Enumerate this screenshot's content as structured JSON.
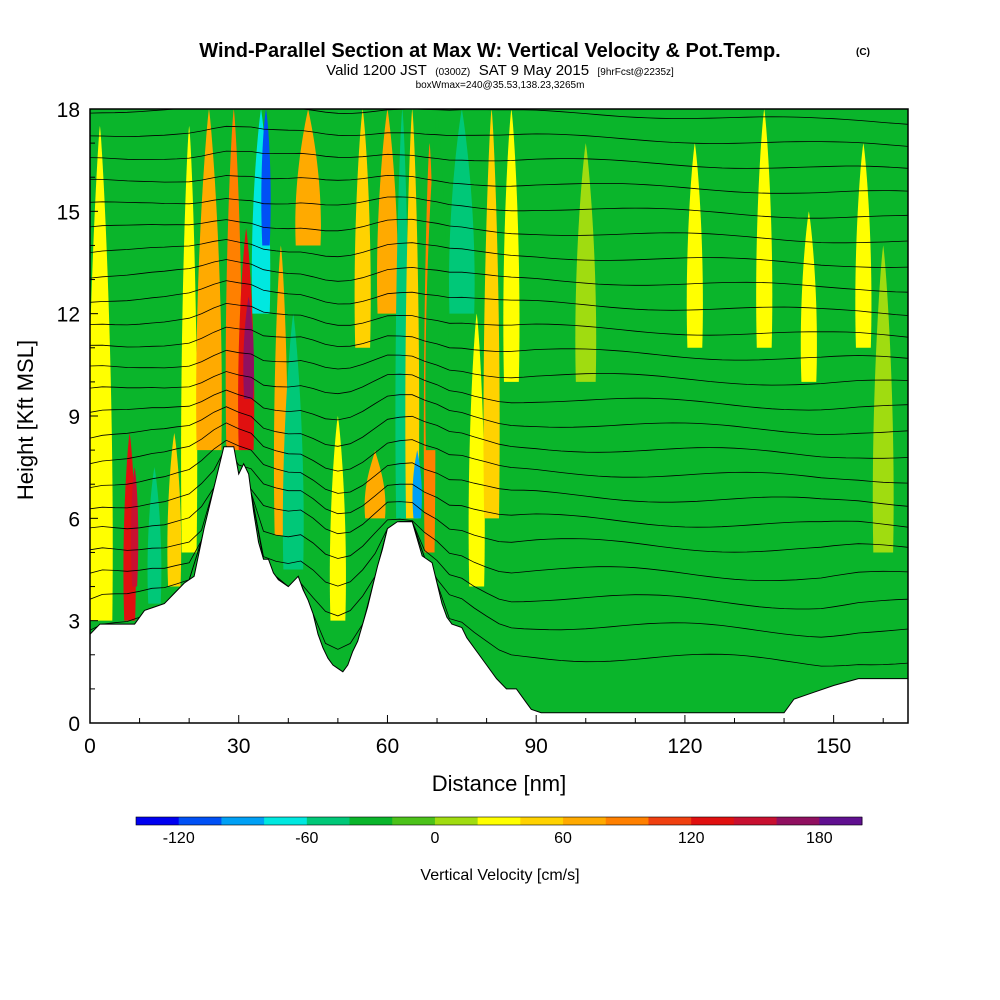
{
  "header": {
    "title": "Wind-Parallel Section at Max W: Vertical Velocity & Pot.Temp.",
    "copyright": "(C)",
    "valid_prefix": "Valid 1200 JST",
    "valid_utc": "(0300Z)",
    "valid_date": "SAT 9 May 2015",
    "forecast_tag": "[9hrFcst@2235z]",
    "box_info": "boxWmax=240@35.53,138.23,3265m"
  },
  "chart_data": {
    "type": "heatmap",
    "xlabel": "Distance [nm]",
    "ylabel": "Height [Kft MSL]",
    "xlim": [
      0,
      165
    ],
    "ylim": [
      0,
      18
    ],
    "xticks": [
      0,
      30,
      60,
      90,
      120,
      150
    ],
    "yticks": [
      0,
      3,
      6,
      9,
      12,
      15,
      18
    ],
    "background_color": "#0ab52b",
    "terrain": [
      [
        0,
        2.6
      ],
      [
        2,
        2.9
      ],
      [
        9,
        2.9
      ],
      [
        11,
        3.3
      ],
      [
        13,
        3.4
      ],
      [
        15,
        3.5
      ],
      [
        17,
        3.8
      ],
      [
        19,
        4.1
      ],
      [
        21,
        4.3
      ],
      [
        23,
        5.7
      ],
      [
        25,
        6.9
      ],
      [
        27,
        8.1
      ],
      [
        29,
        8.1
      ],
      [
        30,
        7.3
      ],
      [
        31,
        7.6
      ],
      [
        32,
        7.3
      ],
      [
        33,
        6.2
      ],
      [
        34,
        5.3
      ],
      [
        35,
        4.8
      ],
      [
        36,
        4.8
      ],
      [
        37,
        4.4
      ],
      [
        38,
        4.2
      ],
      [
        40,
        4.0
      ],
      [
        42,
        4.3
      ],
      [
        43,
        3.9
      ],
      [
        44,
        3.6
      ],
      [
        45,
        3.2
      ],
      [
        46,
        2.6
      ],
      [
        47,
        2.2
      ],
      [
        48,
        1.9
      ],
      [
        49,
        1.7
      ],
      [
        50,
        1.6
      ],
      [
        51,
        1.5
      ],
      [
        52,
        1.7
      ],
      [
        53,
        2.1
      ],
      [
        54,
        2.4
      ],
      [
        55,
        2.9
      ],
      [
        56,
        3.4
      ],
      [
        57,
        4.0
      ],
      [
        58,
        4.6
      ],
      [
        59,
        5.1
      ],
      [
        60,
        5.7
      ],
      [
        62,
        5.9
      ],
      [
        65,
        5.9
      ],
      [
        66,
        5.4
      ],
      [
        67,
        4.9
      ],
      [
        69,
        4.7
      ],
      [
        70,
        4.1
      ],
      [
        71,
        3.5
      ],
      [
        72,
        3.1
      ],
      [
        73,
        2.9
      ],
      [
        75,
        2.8
      ],
      [
        76,
        2.5
      ],
      [
        78,
        2.1
      ],
      [
        80,
        1.7
      ],
      [
        82,
        1.3
      ],
      [
        84,
        1.0
      ],
      [
        86,
        1.0
      ],
      [
        88,
        0.6
      ],
      [
        89,
        0.4
      ],
      [
        91,
        0.3
      ],
      [
        140,
        0.3
      ],
      [
        142,
        0.7
      ],
      [
        146,
        0.9
      ],
      [
        150,
        1.1
      ],
      [
        155,
        1.3
      ],
      [
        158,
        1.3
      ],
      [
        165,
        1.3
      ]
    ],
    "isentropes": [
      2.0,
      2.9,
      3.7,
      4.5,
      5.3,
      6.0,
      6.7,
      7.4,
      8.1,
      8.8,
      9.5,
      10.2,
      10.9,
      11.6,
      12.3,
      13.0,
      13.7,
      14.4,
      15.1,
      15.8,
      16.5,
      17.2,
      17.9
    ],
    "bands": [
      {
        "x": 2,
        "w": 5,
        "y0": 3,
        "y1": 17.5,
        "w_cms": 30
      },
      {
        "x": 8,
        "w": 2.2,
        "y0": 3,
        "y1": 8.5,
        "w_cms": 120
      },
      {
        "x": 9,
        "w": 1.0,
        "y0": 4,
        "y1": 7.5,
        "w_cms": 150
      },
      {
        "x": 13,
        "w": 2.5,
        "y0": 3.5,
        "y1": 7.5,
        "w_cms": -45
      },
      {
        "x": 17,
        "w": 2.5,
        "y0": 4.0,
        "y1": 8.5,
        "w_cms": 45
      },
      {
        "x": 20,
        "w": 3,
        "y0": 5.0,
        "y1": 17.5,
        "w_cms": 20
      },
      {
        "x": 24,
        "w": 5,
        "y0": 8.0,
        "y1": 18,
        "w_cms": 60
      },
      {
        "x": 29,
        "w": 3,
        "y0": 8.0,
        "y1": 18,
        "w_cms": 90
      },
      {
        "x": 31.5,
        "w": 3,
        "y0": 8.0,
        "y1": 14.5,
        "w_cms": 130
      },
      {
        "x": 32,
        "w": 1.8,
        "y0": 9.5,
        "y1": 12.5,
        "w_cms": 170
      },
      {
        "x": 34.5,
        "w": 3.5,
        "y0": 12,
        "y1": 18,
        "w_cms": -80
      },
      {
        "x": 35.5,
        "w": 1.5,
        "y0": 14,
        "y1": 18,
        "w_cms": -110
      },
      {
        "x": 38.5,
        "w": 2.5,
        "y0": 5.5,
        "y1": 14,
        "w_cms": 60
      },
      {
        "x": 41,
        "w": 4,
        "y0": 4.5,
        "y1": 12,
        "w_cms": -45
      },
      {
        "x": 44,
        "w": 5,
        "y0": 14,
        "y1": 18,
        "w_cms": 60
      },
      {
        "x": 50,
        "w": 3,
        "y0": 3,
        "y1": 9,
        "w_cms": 25
      },
      {
        "x": 55,
        "w": 3,
        "y0": 11,
        "y1": 18,
        "w_cms": 45
      },
      {
        "x": 57.5,
        "w": 4,
        "y0": 6,
        "y1": 8,
        "w_cms": 60
      },
      {
        "x": 60,
        "w": 4,
        "y0": 12,
        "y1": 18,
        "w_cms": 60
      },
      {
        "x": 63,
        "w": 2.5,
        "y0": 6,
        "y1": 18,
        "w_cms": -45
      },
      {
        "x": 65,
        "w": 2.5,
        "y0": 6,
        "y1": 18,
        "w_cms": 45
      },
      {
        "x": 66,
        "w": 1.5,
        "y0": 6,
        "y1": 8,
        "w_cms": -100
      },
      {
        "x": 68.5,
        "w": 2,
        "y0": 5,
        "y1": 17,
        "w_cms": 90
      },
      {
        "x": 70,
        "w": 4.5,
        "y0": 8,
        "y1": 18,
        "w_cms": -40
      },
      {
        "x": 75,
        "w": 5,
        "y0": 12,
        "y1": 18,
        "w_cms": -60
      },
      {
        "x": 78,
        "w": 3,
        "y0": 4,
        "y1": 12,
        "w_cms": 20
      },
      {
        "x": 81,
        "w": 3,
        "y0": 6,
        "y1": 18,
        "w_cms": 50
      },
      {
        "x": 85,
        "w": 3,
        "y0": 10,
        "y1": 18,
        "w_cms": 30
      },
      {
        "x": 100,
        "w": 4,
        "y0": 10,
        "y1": 17,
        "w_cms": 15
      },
      {
        "x": 122,
        "w": 3,
        "y0": 11,
        "y1": 17,
        "w_cms": 20
      },
      {
        "x": 136,
        "w": 3,
        "y0": 11,
        "y1": 18,
        "w_cms": 30
      },
      {
        "x": 145,
        "w": 3,
        "y0": 10,
        "y1": 15,
        "w_cms": 20
      },
      {
        "x": 156,
        "w": 3,
        "y0": 11,
        "y1": 17,
        "w_cms": 20
      },
      {
        "x": 160,
        "w": 4,
        "y0": 5,
        "y1": 14,
        "w_cms": 15
      }
    ],
    "colorbar": {
      "label": "Vertical Velocity [cm/s]",
      "tick_labels": [
        "-120",
        "-60",
        "0",
        "60",
        "120",
        "180"
      ],
      "tick_values": [
        -120,
        -60,
        0,
        60,
        120,
        180
      ],
      "range": [
        -140,
        200
      ],
      "colors": [
        "#0000f0",
        "#0050f5",
        "#00a0f5",
        "#00e8e0",
        "#00c878",
        "#0ab52b",
        "#4cc21a",
        "#a0dc10",
        "#ffff00",
        "#ffd200",
        "#ffaa00",
        "#ff8000",
        "#f04010",
        "#e01010",
        "#c81030",
        "#901060",
        "#601090"
      ]
    }
  }
}
